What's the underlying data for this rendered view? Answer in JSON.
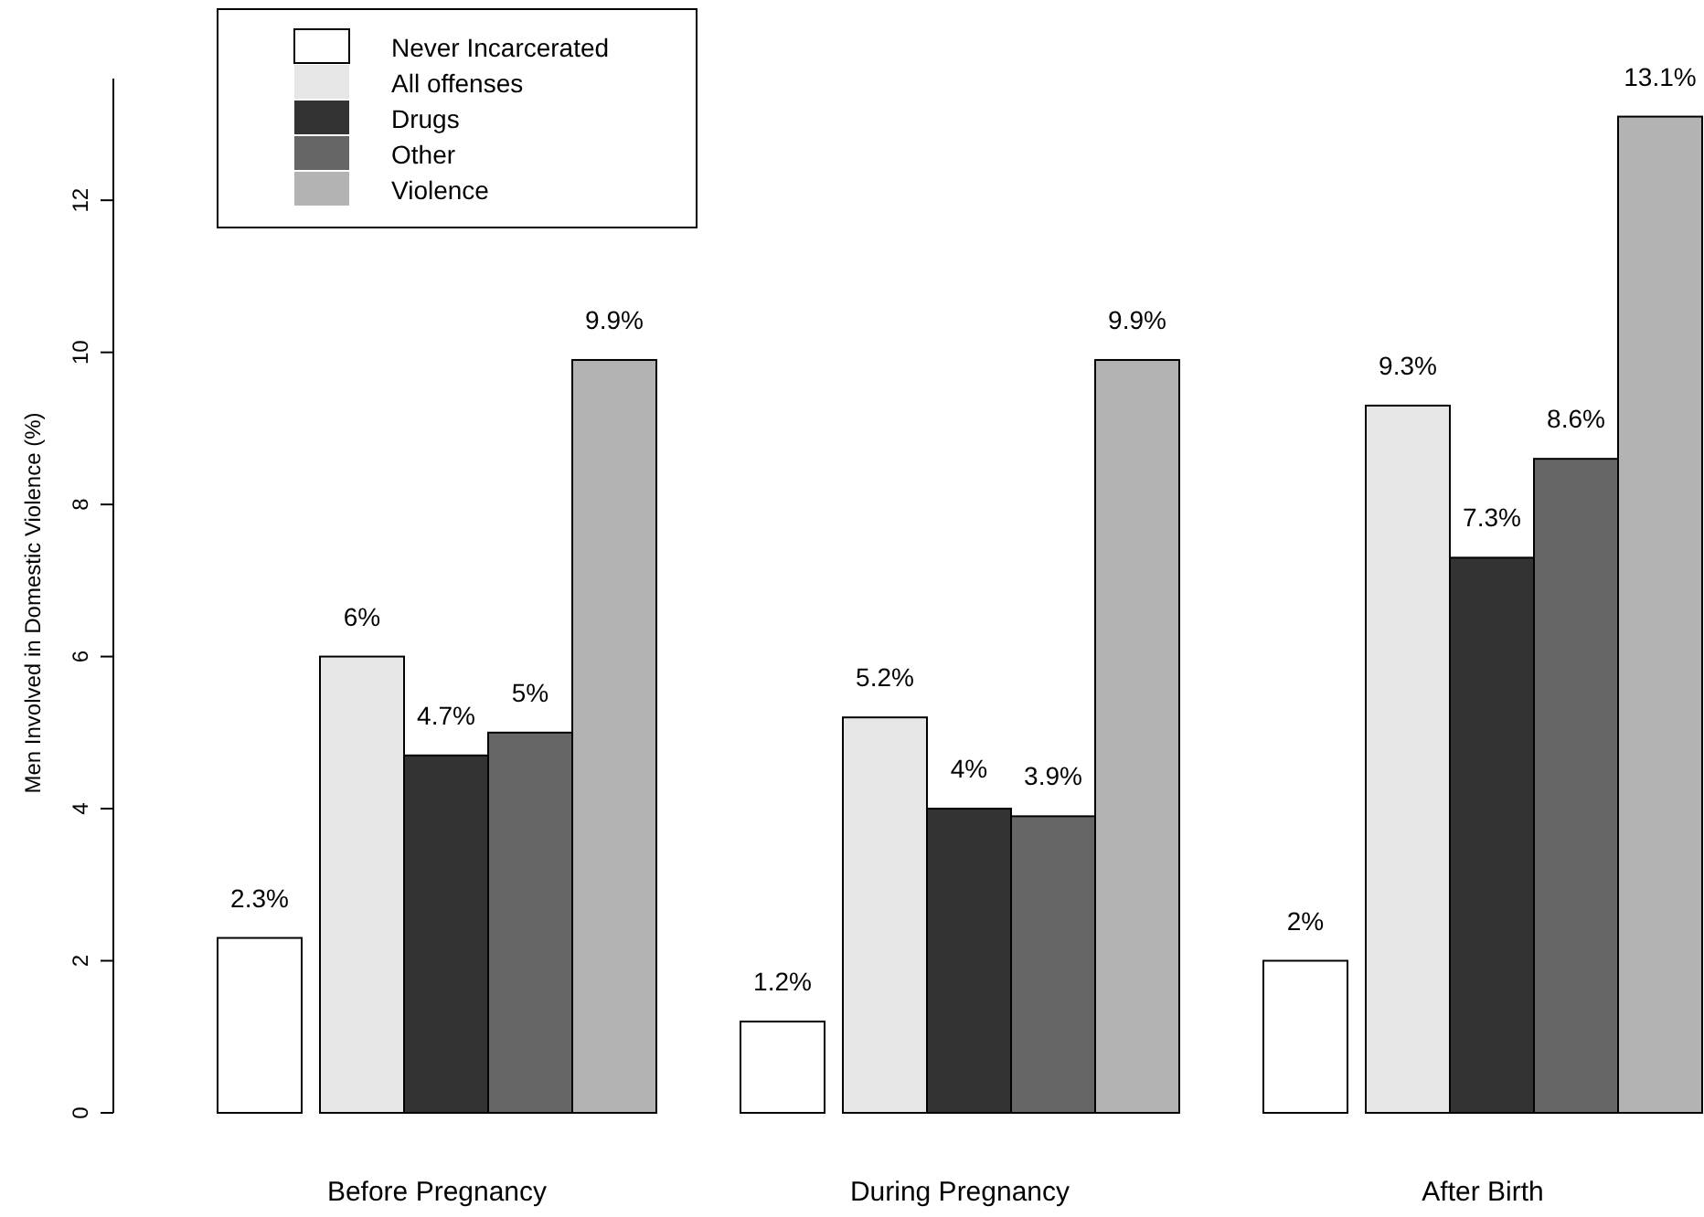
{
  "chart_data": {
    "type": "bar",
    "ylabel": "Men Involved in Domestic Violence (%)",
    "categories": [
      "Before Pregnancy",
      "During Pregnancy",
      "After Birth"
    ],
    "series": [
      {
        "name": "Never Incarcerated",
        "color": "#ffffff",
        "values": [
          2.3,
          1.2,
          2.0
        ],
        "value_labels": [
          "2.3%",
          "1.2%",
          "2%"
        ]
      },
      {
        "name": "All offenses",
        "color": "#e6e6e6",
        "values": [
          6.0,
          5.2,
          9.3
        ],
        "value_labels": [
          "6%",
          "5.2%",
          "9.3%"
        ]
      },
      {
        "name": "Drugs",
        "color": "#333333",
        "values": [
          4.7,
          4.0,
          7.3
        ],
        "value_labels": [
          "4.7%",
          "4%",
          "7.3%"
        ]
      },
      {
        "name": "Other",
        "color": "#666666",
        "values": [
          5.0,
          3.9,
          8.6
        ],
        "value_labels": [
          "5%",
          "3.9%",
          "8.6%"
        ]
      },
      {
        "name": "Violence",
        "color": "#b3b3b3",
        "values": [
          9.9,
          9.9,
          13.1
        ],
        "value_labels": [
          "9.9%",
          "9.9%",
          "13.1%"
        ]
      }
    ],
    "ylim": [
      0,
      13.6
    ],
    "yticks": [
      0,
      2,
      4,
      6,
      8,
      10,
      12
    ],
    "legend": "top left",
    "grid": false
  }
}
